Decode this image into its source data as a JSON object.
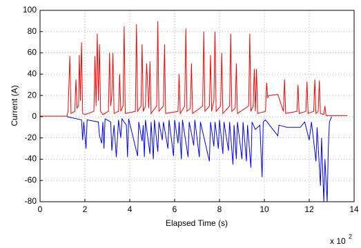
{
  "chart_data": {
    "type": "line",
    "xlabel": "Elapsed Time (s)",
    "ylabel": "Current (A)",
    "x_multiplier": "x 10",
    "x_multiplier_exponent": "2",
    "xlim": [
      0,
      14
    ],
    "xticks": [
      0,
      2,
      4,
      6,
      8,
      10,
      12,
      14
    ],
    "ylim": [
      -80,
      100
    ],
    "yticks": [
      -80,
      -60,
      -40,
      -20,
      0,
      20,
      40,
      60,
      80,
      100
    ],
    "grid": true,
    "series": [
      {
        "color": "#ff0000",
        "x": [
          0,
          1.2,
          1.25,
          1.33,
          1.38,
          1.55,
          1.6,
          1.65,
          1.72,
          1.75,
          1.8,
          1.85,
          1.9,
          2.0,
          2.4,
          2.45,
          2.5,
          2.55,
          2.6,
          2.65,
          2.7,
          2.8,
          3.05,
          3.1,
          3.15,
          3.2,
          3.25,
          3.3,
          3.5,
          3.55,
          3.6,
          3.7,
          3.75,
          3.8,
          4.25,
          4.3,
          4.35,
          4.5,
          4.55,
          4.6,
          4.7,
          4.75,
          4.85,
          4.9,
          4.95,
          5.2,
          5.25,
          5.3,
          5.5,
          5.55,
          5.6,
          6.15,
          6.2,
          6.25,
          6.45,
          6.5,
          6.55,
          6.7,
          6.75,
          6.8,
          7.25,
          7.3,
          7.35,
          7.55,
          7.6,
          7.65,
          7.75,
          7.8,
          7.85,
          8.05,
          8.1,
          8.15,
          8.45,
          8.5,
          8.55,
          8.7,
          8.75,
          8.8,
          9.3,
          9.35,
          9.4,
          9.5,
          9.55,
          9.6,
          9.65,
          9.7,
          10.05,
          10.1,
          10.15,
          10.2,
          10.3,
          10.6,
          10.85,
          10.9,
          10.95,
          11.45,
          11.5,
          11.55,
          11.85,
          11.9,
          11.95,
          12.2,
          12.25,
          12.3,
          12.4,
          12.45,
          12.5,
          12.65,
          12.7,
          12.75,
          13.7
        ],
        "values": [
          0.5,
          0.5,
          5,
          57,
          3,
          5,
          35,
          8,
          10,
          58,
          15,
          70,
          3,
          2,
          5,
          57,
          10,
          78,
          15,
          68,
          5,
          2,
          5,
          60,
          10,
          20,
          60,
          3,
          5,
          40,
          5,
          10,
          85,
          3,
          5,
          87,
          5,
          10,
          68,
          5,
          10,
          50,
          8,
          52,
          3,
          10,
          90,
          5,
          10,
          68,
          3,
          5,
          40,
          3,
          10,
          83,
          5,
          8,
          50,
          3,
          10,
          80,
          5,
          10,
          58,
          5,
          15,
          80,
          5,
          10,
          60,
          3,
          10,
          78,
          5,
          8,
          50,
          3,
          10,
          78,
          5,
          10,
          45,
          5,
          45,
          3,
          5,
          32,
          18,
          20,
          20,
          21,
          5,
          35,
          3,
          5,
          30,
          3,
          5,
          33,
          3,
          5,
          35,
          3,
          5,
          34,
          3,
          2,
          10,
          1,
          1
        ]
      },
      {
        "color": "#0000ff",
        "x": [
          1.2,
          1.85,
          1.9,
          1.95,
          2.05,
          2.1,
          2.6,
          2.65,
          2.75,
          2.8,
          2.85,
          2.9,
          3.15,
          3.2,
          3.3,
          3.4,
          3.5,
          3.6,
          3.65,
          3.85,
          3.9,
          3.95,
          4.35,
          4.4,
          4.55,
          4.6,
          4.65,
          4.7,
          4.9,
          4.95,
          5.05,
          5.1,
          5.25,
          5.3,
          5.45,
          5.5,
          5.7,
          5.75,
          5.95,
          6.0,
          6.15,
          6.2,
          6.3,
          6.35,
          6.6,
          6.65,
          6.85,
          6.9,
          7.1,
          7.15,
          7.55,
          7.6,
          7.75,
          7.8,
          7.95,
          8.0,
          8.15,
          8.2,
          8.4,
          8.45,
          8.6,
          8.65,
          8.75,
          8.8,
          9.0,
          9.05,
          9.2,
          9.25,
          9.4,
          9.45,
          9.6,
          9.8,
          9.9,
          9.95,
          10.05,
          10.6,
          10.65,
          11.0,
          11.6,
          11.8,
          12.0,
          12.1,
          12.3,
          12.35,
          12.5,
          12.55,
          12.65,
          12.7,
          12.8,
          12.85,
          12.9,
          13.0
        ],
        "values": [
          0,
          -3,
          -22,
          -5,
          -30,
          -3,
          -5,
          -18,
          -25,
          -5,
          -30,
          -2,
          -5,
          -32,
          -8,
          -38,
          -3,
          -20,
          -2,
          -8,
          -38,
          -2,
          -37,
          -5,
          -23,
          -8,
          -38,
          -3,
          -35,
          -5,
          -40,
          -3,
          -33,
          -5,
          -22,
          -5,
          -30,
          -3,
          -37,
          -3,
          -25,
          -5,
          -40,
          -3,
          -38,
          -5,
          -27,
          -3,
          -38,
          -5,
          -42,
          -5,
          -28,
          -5,
          -30,
          -3,
          -35,
          -5,
          -32,
          -5,
          -45,
          -8,
          -40,
          -5,
          -40,
          -5,
          -42,
          -8,
          -48,
          -5,
          -12,
          -8,
          -57,
          -5,
          -3,
          -18,
          -8,
          -10,
          -10,
          -5,
          -22,
          -5,
          -42,
          -10,
          -65,
          -20,
          -80,
          -40,
          -80,
          -30,
          -5,
          0
        ]
      }
    ]
  }
}
